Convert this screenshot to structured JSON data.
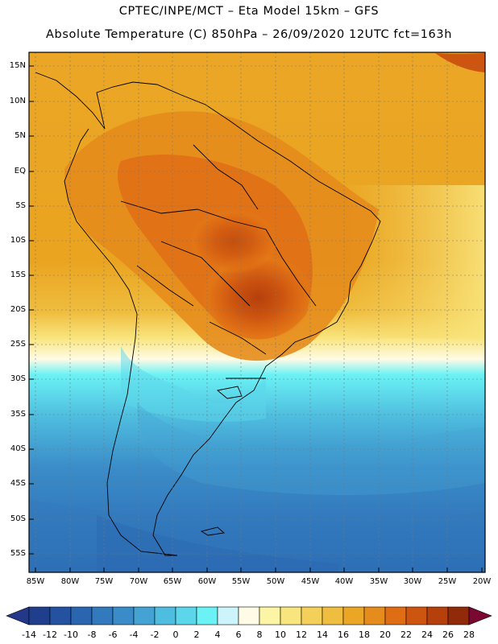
{
  "header": {
    "title_line1": "CPTEC/INPE/MCT –   Eta Model 15km – GFS",
    "title_line2": "Absolute Temperature (C) 850hPa – 26/09/2020 12UTC fct=163h"
  },
  "map": {
    "lat_labels": [
      "15N",
      "10N",
      "5N",
      "EQ",
      "5S",
      "10S",
      "15S",
      "20S",
      "25S",
      "30S",
      "35S",
      "40S",
      "45S",
      "50S",
      "55S"
    ],
    "lon_labels": [
      "85W",
      "80W",
      "75W",
      "70W",
      "65W",
      "60W",
      "55W",
      "50W",
      "45W",
      "40W",
      "35W",
      "30W",
      "25W",
      "20W"
    ]
  },
  "colorbar": {
    "labels": [
      "-14",
      "-12",
      "-10",
      "-8",
      "-6",
      "-4",
      "-2",
      "0",
      "2",
      "4",
      "6",
      "8",
      "10",
      "12",
      "14",
      "16",
      "18",
      "20",
      "22",
      "24",
      "26",
      "28"
    ],
    "colors": [
      "#1f3f8c",
      "#2452a0",
      "#2a66b0",
      "#3279bd",
      "#3a8cc8",
      "#44a3d3",
      "#4fbddf",
      "#5cd6ea",
      "#6af2f5",
      "#cdf4fb",
      "#fffbe6",
      "#fdf5a6",
      "#f9e57e",
      "#f4d05a",
      "#efbd3f",
      "#eba626",
      "#e68c1c",
      "#df6d14",
      "#cd5510",
      "#b5400c",
      "#902a08",
      "#6a1a06"
    ],
    "under_color": "#24388a",
    "over_color": "#7a0830"
  }
}
